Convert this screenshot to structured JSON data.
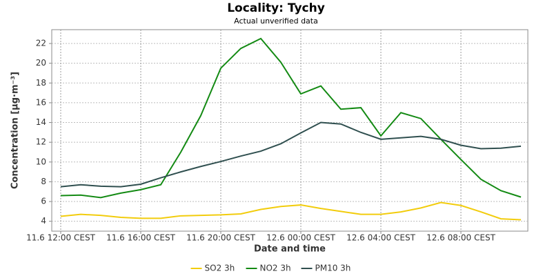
{
  "chart_data": {
    "type": "line",
    "title": "Locality: Tychy",
    "subtitle": "Actual unverified data",
    "x_label": "Date and time",
    "y_label": "Concentration [µg·m⁻³]",
    "categories": [
      "11.6 12:00 CEST",
      null,
      null,
      null,
      "11.6 16:00 CEST",
      null,
      null,
      null,
      "11.6 20:00 CEST",
      null,
      null,
      null,
      "12.6 00:00 CEST",
      null,
      null,
      null,
      "12.6 04:00 CEST",
      null,
      null,
      null,
      "12.6 08:00 CEST",
      null,
      null,
      null
    ],
    "series": [
      {
        "name": "SO2 3h",
        "color": "#f2cc0c",
        "values": [
          4.5,
          4.7,
          4.6,
          4.4,
          4.3,
          4.3,
          4.55,
          4.6,
          4.65,
          4.75,
          5.2,
          5.5,
          5.65,
          5.3,
          5.0,
          4.7,
          4.7,
          4.95,
          5.35,
          5.9,
          5.6,
          4.95,
          4.25,
          4.15
        ]
      },
      {
        "name": "NO2 3h",
        "color": "#138a13",
        "values": [
          6.6,
          6.65,
          6.4,
          6.85,
          7.2,
          7.7,
          11.0,
          14.7,
          19.5,
          21.5,
          22.5,
          20.1,
          16.9,
          17.7,
          15.35,
          15.5,
          12.65,
          15.0,
          14.4,
          12.3,
          10.25,
          8.25,
          7.1,
          6.45
        ]
      },
      {
        "name": "PM10 3h",
        "color": "#2f4f4f",
        "values": [
          7.5,
          7.7,
          7.55,
          7.5,
          7.75,
          8.4,
          9.0,
          9.55,
          10.05,
          10.6,
          11.1,
          11.85,
          12.95,
          14.0,
          13.85,
          13.0,
          12.3,
          12.45,
          12.6,
          12.3,
          11.7,
          11.35,
          11.4,
          11.6
        ]
      }
    ],
    "ylim": [
      3.0,
      23.4
    ],
    "yticks": [
      4,
      6,
      8,
      10,
      12,
      14,
      16,
      18,
      20,
      22
    ],
    "grid": true,
    "legend": "bottom"
  }
}
